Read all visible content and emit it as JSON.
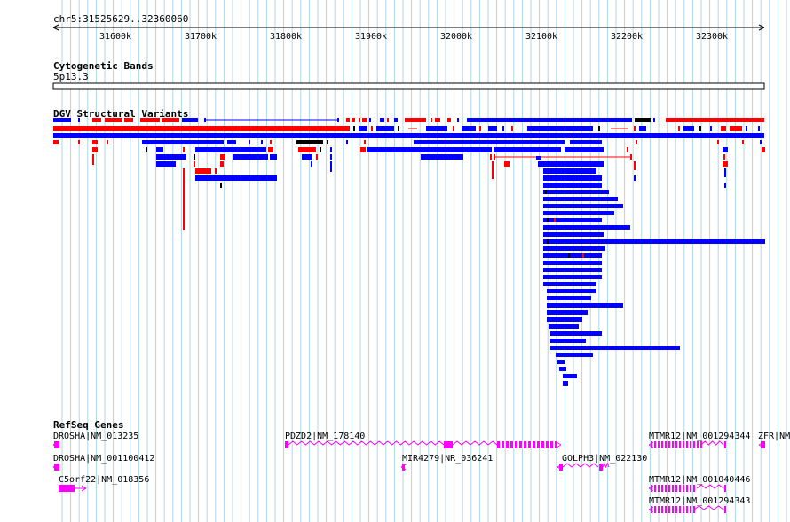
{
  "coord_label": "chr5:31525629..32360060",
  "ruler_ticks": [
    "31600k",
    "31700k",
    "31800k",
    "31900k",
    "32000k",
    "32100k",
    "32200k",
    "32300k"
  ],
  "tracks": {
    "cytobands": {
      "title": "Cytogenetic Bands",
      "label": "5p13.3"
    },
    "dgv": {
      "title": "DGV Structural Variants"
    },
    "refseq": {
      "title": "RefSeq Genes",
      "genes": [
        {
          "label": "DROSHA|NM_013235"
        },
        {
          "label": "PDZD2|NM_178140"
        },
        {
          "label": "MTMR12|NM_001294344"
        },
        {
          "label": "ZFR|NM"
        },
        {
          "label": "DROSHA|NM_001100412"
        },
        {
          "label": "MIR4279|NR_036241"
        },
        {
          "label": "GOLPH3|NM_022130"
        },
        {
          "label": "C5orf22|NM_018356"
        },
        {
          "label": "MTMR12|NM_001040446"
        },
        {
          "label": "MTMR12|NM_001294343"
        }
      ]
    }
  },
  "colors": {
    "loss": "#ff0000",
    "gain": "#0000ff",
    "complex": "#000000",
    "gene": "#ff00ff",
    "grid": "#add8e6"
  }
}
